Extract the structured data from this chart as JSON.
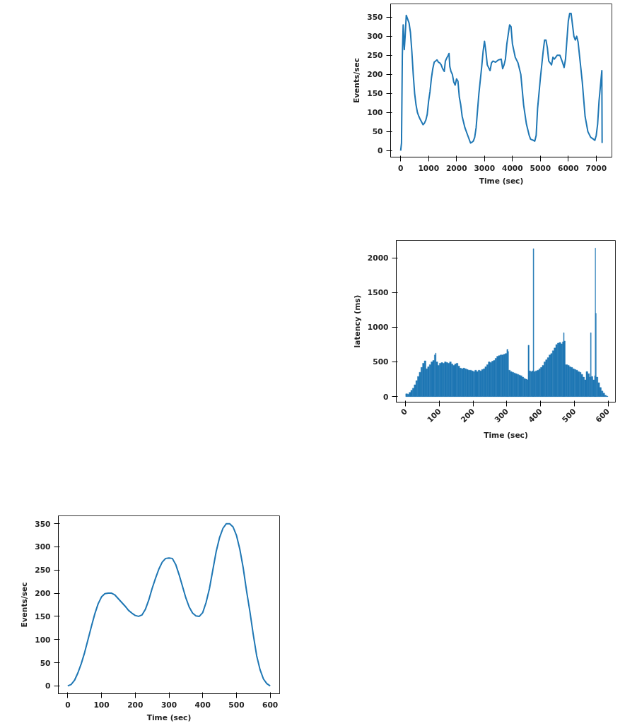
{
  "chart_data": [
    {
      "type": "line",
      "xlabel": "Time (sec)",
      "ylabel": "Events/sec",
      "color": "#1f77b4",
      "x": [
        0,
        30,
        60,
        90,
        110,
        130,
        160,
        200,
        250,
        300,
        350,
        400,
        450,
        500,
        550,
        600,
        650,
        700,
        750,
        800,
        850,
        900,
        950,
        1000,
        1050,
        1100,
        1150,
        1200,
        1250,
        1300,
        1350,
        1400,
        1450,
        1500,
        1560,
        1600,
        1650,
        1700,
        1730,
        1760,
        1800,
        1850,
        1900,
        1950,
        2000,
        2050,
        2100,
        2150,
        2200,
        2300,
        2400,
        2500,
        2550,
        2600,
        2650,
        2700,
        2800,
        2900,
        2950,
        3000,
        3050,
        3100,
        3200,
        3250,
        3300,
        3400,
        3500,
        3600,
        3650,
        3700,
        3750,
        3800,
        3900,
        3950,
        4000,
        4100,
        4200,
        4300,
        4400,
        4500,
        4600,
        4650,
        4750,
        4800,
        4850,
        4900,
        5000,
        5100,
        5150,
        5200,
        5250,
        5300,
        5400,
        5450,
        5500,
        5550,
        5600,
        5700,
        5800,
        5850,
        5900,
        6000,
        6050,
        6100,
        6200,
        6250,
        6300,
        6350,
        6400,
        6500,
        6600,
        6700,
        6800,
        6900,
        6950,
        7000,
        7050,
        7100,
        7150,
        7200,
        7210
      ],
      "values": [
        0,
        20,
        250,
        330,
        300,
        265,
        300,
        355,
        345,
        335,
        310,
        260,
        200,
        150,
        120,
        100,
        90,
        82,
        75,
        68,
        72,
        80,
        95,
        130,
        155,
        190,
        215,
        232,
        235,
        238,
        232,
        230,
        225,
        215,
        208,
        235,
        243,
        250,
        255,
        220,
        208,
        200,
        180,
        172,
        188,
        182,
        140,
        120,
        90,
        60,
        40,
        20,
        22,
        25,
        35,
        60,
        150,
        220,
        260,
        287,
        260,
        225,
        210,
        230,
        235,
        232,
        238,
        240,
        215,
        225,
        240,
        280,
        330,
        325,
        280,
        245,
        230,
        200,
        120,
        70,
        40,
        30,
        27,
        25,
        40,
        110,
        190,
        260,
        290,
        290,
        270,
        235,
        225,
        245,
        240,
        245,
        250,
        250,
        230,
        218,
        240,
        340,
        360,
        360,
        300,
        290,
        300,
        285,
        250,
        180,
        90,
        50,
        35,
        30,
        27,
        40,
        70,
        130,
        170,
        210,
        20
      ],
      "xlim": [
        -360,
        7560
      ],
      "ylim": [
        -17,
        385
      ],
      "xticks": [
        0,
        1000,
        2000,
        3000,
        4000,
        5000,
        6000,
        7000
      ],
      "yticks": [
        0,
        50,
        100,
        150,
        200,
        250,
        300,
        350
      ]
    },
    {
      "type": "bar",
      "xlabel": "Time (sec)",
      "ylabel": "latency (ms)",
      "color": "#1f77b4",
      "x": [
        0,
        5,
        10,
        15,
        20,
        25,
        30,
        35,
        40,
        45,
        50,
        55,
        60,
        65,
        70,
        75,
        80,
        85,
        88,
        90,
        95,
        100,
        105,
        110,
        115,
        120,
        125,
        130,
        135,
        140,
        145,
        150,
        155,
        160,
        165,
        170,
        175,
        180,
        185,
        190,
        195,
        200,
        205,
        210,
        215,
        220,
        225,
        230,
        235,
        240,
        245,
        250,
        255,
        260,
        265,
        270,
        275,
        280,
        285,
        290,
        295,
        300,
        303,
        305,
        310,
        315,
        320,
        325,
        330,
        335,
        340,
        345,
        350,
        355,
        360,
        363,
        366,
        370,
        375,
        378,
        380,
        385,
        390,
        395,
        400,
        405,
        410,
        415,
        420,
        425,
        430,
        435,
        440,
        445,
        450,
        455,
        460,
        465,
        468,
        470,
        473,
        480,
        485,
        490,
        495,
        500,
        505,
        510,
        515,
        520,
        525,
        530,
        535,
        540,
        545,
        548,
        550,
        555,
        560,
        562,
        563,
        565,
        570,
        575,
        580,
        585,
        590,
        595
      ],
      "values": [
        40,
        35,
        60,
        90,
        120,
        170,
        230,
        290,
        350,
        420,
        480,
        515,
        400,
        430,
        460,
        500,
        520,
        600,
        625,
        500,
        450,
        480,
        490,
        480,
        500,
        490,
        480,
        500,
        470,
        450,
        470,
        480,
        440,
        410,
        400,
        410,
        400,
        390,
        380,
        380,
        370,
        360,
        380,
        360,
        380,
        370,
        390,
        400,
        430,
        460,
        500,
        490,
        510,
        520,
        550,
        580,
        590,
        600,
        600,
        610,
        620,
        680,
        650,
        380,
        360,
        350,
        340,
        330,
        320,
        310,
        300,
        280,
        260,
        250,
        240,
        740,
        370,
        360,
        370,
        2130,
        360,
        370,
        380,
        400,
        420,
        450,
        500,
        530,
        560,
        600,
        620,
        660,
        700,
        750,
        770,
        780,
        760,
        790,
        920,
        800,
        460,
        450,
        430,
        420,
        400,
        390,
        380,
        360,
        350,
        320,
        280,
        240,
        360,
        330,
        280,
        920,
        290,
        240,
        300,
        2140,
        1200,
        280,
        200,
        130,
        80,
        50,
        20,
        5
      ],
      "xlim": [
        -28,
        622
      ],
      "ylim": [
        -80,
        2250
      ],
      "xticks": [
        0,
        100,
        200,
        300,
        400,
        500,
        600
      ],
      "yticks": [
        0,
        500,
        1000,
        1500,
        2000
      ]
    },
    {
      "type": "line",
      "xlabel": "Time (sec)",
      "ylabel": "Events/sec",
      "color": "#1f77b4",
      "x": [
        0,
        10,
        20,
        30,
        40,
        50,
        60,
        70,
        80,
        90,
        100,
        110,
        120,
        130,
        140,
        150,
        160,
        170,
        180,
        190,
        200,
        210,
        220,
        230,
        240,
        250,
        260,
        270,
        280,
        290,
        300,
        310,
        320,
        330,
        340,
        350,
        360,
        370,
        380,
        390,
        400,
        410,
        420,
        430,
        440,
        450,
        460,
        470,
        480,
        490,
        500,
        510,
        520,
        530,
        540,
        550,
        560,
        570,
        580,
        590,
        600
      ],
      "values": [
        0,
        3,
        12,
        28,
        48,
        72,
        100,
        128,
        155,
        177,
        192,
        199,
        200,
        200,
        196,
        188,
        180,
        172,
        163,
        157,
        152,
        150,
        153,
        165,
        185,
        210,
        232,
        252,
        267,
        275,
        276,
        275,
        262,
        240,
        215,
        190,
        170,
        157,
        151,
        150,
        158,
        180,
        210,
        250,
        290,
        320,
        340,
        350,
        350,
        343,
        325,
        295,
        255,
        205,
        160,
        110,
        65,
        35,
        15,
        5,
        0
      ],
      "xlim": [
        -28,
        628
      ],
      "ylim": [
        -17,
        367
      ],
      "xticks": [
        0,
        100,
        200,
        300,
        400,
        500,
        600
      ],
      "yticks": [
        0,
        50,
        100,
        150,
        200,
        250,
        300,
        350
      ]
    }
  ]
}
